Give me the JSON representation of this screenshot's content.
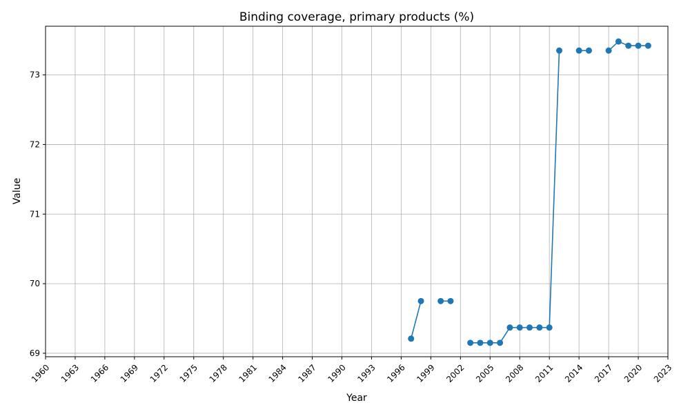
{
  "chart_data": {
    "type": "line",
    "title": "Binding coverage, primary products (%)",
    "xlabel": "Year",
    "ylabel": "Value",
    "xlim": [
      1960,
      2023
    ],
    "ylim": [
      68.95,
      73.7
    ],
    "xticks": [
      1960,
      1963,
      1966,
      1969,
      1972,
      1975,
      1978,
      1981,
      1984,
      1987,
      1990,
      1993,
      1996,
      1999,
      2002,
      2005,
      2008,
      2011,
      2014,
      2017,
      2020,
      2023
    ],
    "yticks": [
      69,
      70,
      71,
      72,
      73
    ],
    "grid": true,
    "color": "#1f77b4",
    "series": [
      {
        "x": [
          1997,
          1998,
          1999,
          2000,
          2001,
          2002,
          2003,
          2004,
          2005,
          2006,
          2007,
          2008,
          2009,
          2010,
          2011,
          2012,
          2013,
          2014,
          2015,
          2016,
          2017,
          2018,
          2019,
          2020,
          2021
        ],
        "y": [
          69.21,
          69.75,
          null,
          69.75,
          69.75,
          null,
          69.15,
          69.15,
          69.15,
          69.15,
          69.37,
          69.37,
          69.37,
          69.37,
          69.37,
          73.35,
          null,
          73.35,
          73.35,
          null,
          73.35,
          73.48,
          73.42,
          73.42,
          73.42
        ]
      }
    ]
  }
}
